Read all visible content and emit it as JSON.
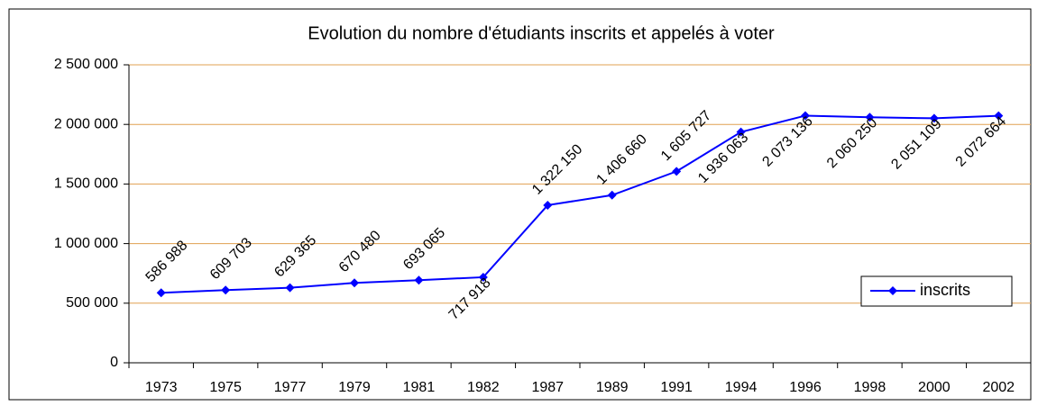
{
  "chart_data": {
    "type": "line",
    "title": "Evolution du nombre d'étudiants inscrits et appelés à voter",
    "categories": [
      "1973",
      "1975",
      "1977",
      "1979",
      "1981",
      "1982",
      "1987",
      "1989",
      "1991",
      "1994",
      "1996",
      "1998",
      "2000",
      "2002"
    ],
    "series": [
      {
        "name": "inscrits",
        "color": "#0000ff",
        "values": [
          586988,
          609703,
          629365,
          670480,
          693065,
          717918,
          1322150,
          1406660,
          1605727,
          1936063,
          2073136,
          2060250,
          2051109,
          2072664
        ],
        "value_labels": [
          "586 988",
          "609 703",
          "629 365",
          "670 480",
          "693 065",
          "717 918",
          "1 322 150",
          "1 406 660",
          "1 605 727",
          "1 936 063",
          "2 073 136",
          "2 060 250",
          "2 051 109",
          "2 072 664"
        ]
      }
    ],
    "ylim": [
      0,
      2500000
    ],
    "yticks": [
      0,
      {
        "value": 500000,
        "label": "500 000"
      },
      {
        "value": 1000000,
        "label": "1 000 000"
      },
      {
        "value": 1500000,
        "label": "1 500 000"
      },
      {
        "value": 2000000,
        "label": "2 000 000"
      },
      {
        "value": 2500000,
        "label": "2 500 000"
      }
    ],
    "grid": true,
    "legend": "right"
  }
}
